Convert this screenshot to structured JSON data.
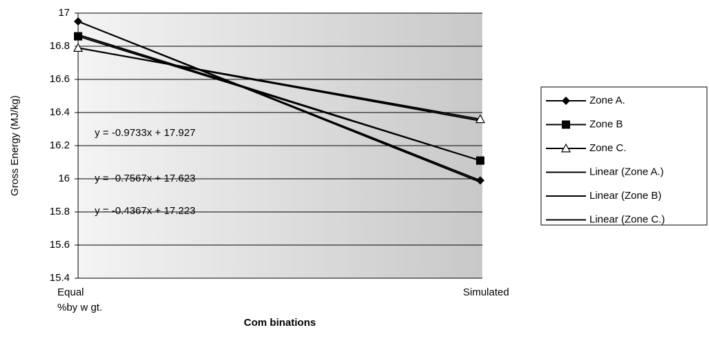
{
  "chart_data": {
    "type": "line",
    "y_label": "Gross Energy (MJ/kg)",
    "x_label": "Com binations",
    "categories": [
      "Equal\n%by w gt.",
      "Simulated"
    ],
    "series": [
      {
        "name": "Zone A.",
        "color": "#000000",
        "marker": "diamond",
        "values": [
          16.95,
          15.99
        ]
      },
      {
        "name": "Zone B",
        "color": "#000000",
        "marker": "square",
        "values": [
          16.86,
          16.11
        ]
      },
      {
        "name": "Zone C.",
        "color": "#000000",
        "marker": "triangle-open",
        "values": [
          16.79,
          16.36
        ]
      },
      {
        "name": "Linear (Zone A.)",
        "color": "#000000",
        "marker": "none",
        "values": [
          16.95,
          15.98
        ]
      },
      {
        "name": "Linear (Zone B)",
        "color": "#000000",
        "marker": "none",
        "values": [
          16.87,
          16.11
        ]
      },
      {
        "name": "Linear (Zone C.)",
        "color": "#000000",
        "marker": "none",
        "values": [
          16.79,
          16.35
        ]
      }
    ],
    "annotations": [
      "y = -0.9733x + 17.927",
      "y = -0.7567x + 17.623",
      "y = -0.4367x + 17.223"
    ],
    "ylim": [
      15.4,
      17
    ],
    "yticks": [
      15.4,
      15.6,
      15.8,
      16,
      16.2,
      16.4,
      16.6,
      16.8,
      17
    ],
    "grid": true,
    "legend": "right"
  }
}
